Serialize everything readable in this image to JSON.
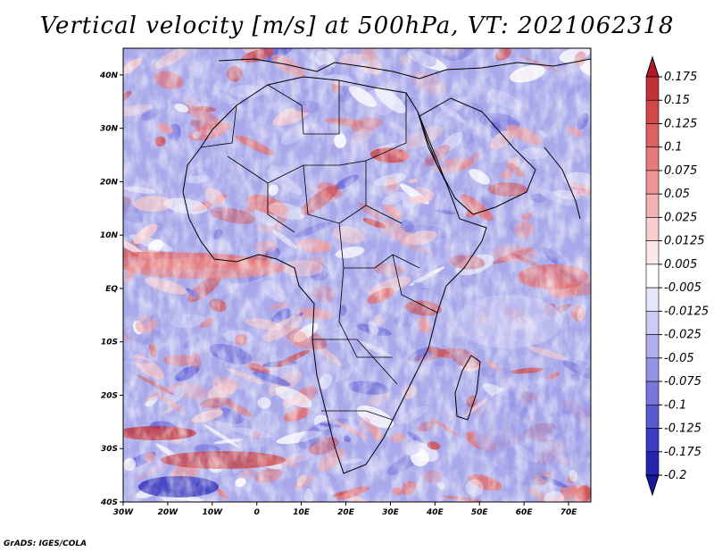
{
  "title": "Vertical velocity [m/s] at 500hPa, VT: 2021062318",
  "footer": "GrADS: IGES/COLA",
  "map": {
    "lat_labels": [
      "40N",
      "30N",
      "20N",
      "10N",
      "EQ",
      "10S",
      "20S",
      "30S",
      "40S"
    ],
    "lat_values": [
      40,
      30,
      20,
      10,
      0,
      -10,
      -20,
      -30,
      -40
    ],
    "lon_labels": [
      "30W",
      "20W",
      "10W",
      "0",
      "10E",
      "20E",
      "30E",
      "40E",
      "50E",
      "60E",
      "70E"
    ],
    "lon_values": [
      -30,
      -20,
      -10,
      0,
      10,
      20,
      30,
      40,
      50,
      60,
      70
    ],
    "extent": {
      "lon": [
        -30,
        75
      ],
      "lat": [
        -40,
        45
      ]
    }
  },
  "colorbar": {
    "labels": [
      "0.175",
      "0.15",
      "0.125",
      "0.1",
      "0.075",
      "0.05",
      "0.025",
      "0.0125",
      "0.005",
      "-0.005",
      "-0.0125",
      "-0.025",
      "-0.05",
      "-0.075",
      "-0.1",
      "-0.125",
      "-0.175",
      "-0.2"
    ],
    "colors": [
      "#b2182b",
      "#c43038",
      "#d04848",
      "#dc6262",
      "#e57b7b",
      "#ed9696",
      "#f3b2b2",
      "#f8cdcd",
      "#fce8e8",
      "#ffffff",
      "#e6e6fa",
      "#ccccf5",
      "#b0b0ee",
      "#9494e6",
      "#7878dc",
      "#5a5ad0",
      "#3c3cc2",
      "#2424b0",
      "#1a1aa0"
    ]
  },
  "colors": {
    "positive": "#e05a5a",
    "negative": "#6a6ae0",
    "coast": "#000000"
  }
}
